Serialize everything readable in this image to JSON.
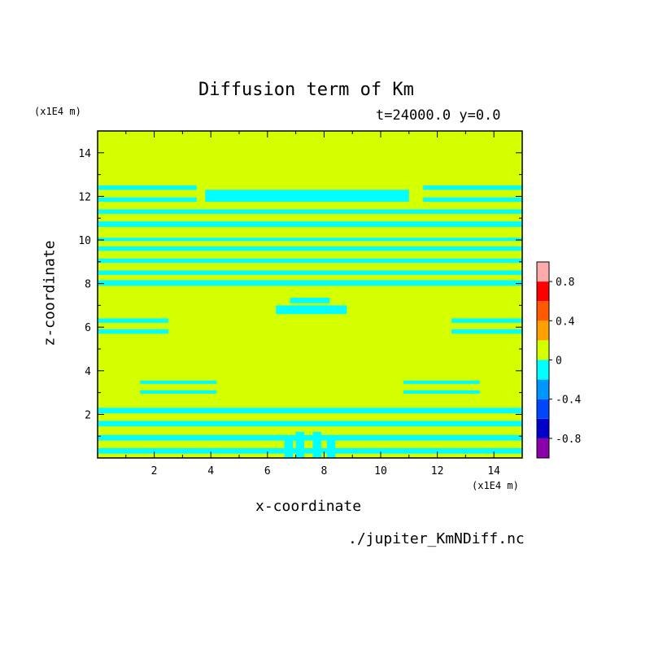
{
  "chart_data": {
    "type": "heatmap",
    "title": "Diffusion term of Km",
    "subtitle": "t=24000.0 y=0.0",
    "xlabel": "x-coordinate",
    "ylabel": "z-coordinate",
    "x_unit": "(x1E4 m)",
    "y_unit": "(x1E4 m)",
    "source_file": "./jupiter_KmNDiff.nc",
    "xlim": [
      0,
      15
    ],
    "ylim": [
      0,
      15
    ],
    "x_ticks": [
      "2",
      "4",
      "6",
      "8",
      "10",
      "12",
      "14"
    ],
    "y_ticks": [
      "2",
      "4",
      "6",
      "8",
      "10",
      "12",
      "14"
    ],
    "colorbar": {
      "levels": [
        -1.0,
        -0.8,
        -0.6,
        -0.4,
        -0.2,
        0,
        0.2,
        0.4,
        0.6,
        0.8,
        1.0
      ],
      "colors": [
        "#8b00a8",
        "#0000c8",
        "#0046ff",
        "#0096ff",
        "#00ffff",
        "#d4ff00",
        "#ffa000",
        "#ff5a00",
        "#ff0000",
        "#ffaaaa"
      ],
      "tick_labels": [
        "-0.8",
        "-0.4",
        "0",
        "0.4",
        "0.8"
      ],
      "tick_values": [
        -0.8,
        -0.4,
        0,
        0.4,
        0.8
      ]
    },
    "field": {
      "background_value": 0.1,
      "background_color": "#d4ff00",
      "negative_color": "#00ffff",
      "negative_bands": [
        {
          "x": [
            0,
            15
          ],
          "z": [
            0.2,
            0.45
          ]
        },
        {
          "x": [
            0,
            15
          ],
          "z": [
            0.8,
            1.05
          ]
        },
        {
          "x": [
            0,
            15
          ],
          "z": [
            1.45,
            1.7
          ]
        },
        {
          "x": [
            0,
            15
          ],
          "z": [
            2.05,
            2.3
          ]
        },
        {
          "x": [
            1.5,
            4.2
          ],
          "z": [
            3.4,
            3.55
          ]
        },
        {
          "x": [
            1.5,
            4.2
          ],
          "z": [
            2.95,
            3.1
          ]
        },
        {
          "x": [
            10.8,
            13.5
          ],
          "z": [
            3.4,
            3.55
          ]
        },
        {
          "x": [
            10.8,
            13.5
          ],
          "z": [
            2.95,
            3.1
          ]
        },
        {
          "x": [
            0,
            2.5
          ],
          "z": [
            6.2,
            6.4
          ]
        },
        {
          "x": [
            0,
            2.5
          ],
          "z": [
            5.7,
            5.9
          ]
        },
        {
          "x": [
            12.5,
            15
          ],
          "z": [
            6.2,
            6.4
          ]
        },
        {
          "x": [
            12.5,
            15
          ],
          "z": [
            5.7,
            5.9
          ]
        },
        {
          "x": [
            6.3,
            8.8
          ],
          "z": [
            6.6,
            7.0
          ]
        },
        {
          "x": [
            6.8,
            8.2
          ],
          "z": [
            7.1,
            7.35
          ]
        },
        {
          "x": [
            0,
            15
          ],
          "z": [
            7.9,
            8.15
          ]
        },
        {
          "x": [
            0,
            15
          ],
          "z": [
            8.4,
            8.6
          ]
        },
        {
          "x": [
            0,
            15
          ],
          "z": [
            8.95,
            9.15
          ]
        },
        {
          "x": [
            0,
            15
          ],
          "z": [
            9.5,
            9.7
          ]
        },
        {
          "x": [
            0,
            15
          ],
          "z": [
            9.95,
            10.1
          ]
        },
        {
          "x": [
            0,
            15
          ],
          "z": [
            10.6,
            10.85
          ]
        },
        {
          "x": [
            0,
            15
          ],
          "z": [
            11.2,
            11.4
          ]
        },
        {
          "x": [
            0,
            3.5
          ],
          "z": [
            11.75,
            11.95
          ]
        },
        {
          "x": [
            0,
            3.5
          ],
          "z": [
            12.3,
            12.5
          ]
        },
        {
          "x": [
            3.8,
            11.0
          ],
          "z": [
            11.75,
            12.3
          ]
        },
        {
          "x": [
            11.5,
            15
          ],
          "z": [
            11.75,
            11.95
          ]
        },
        {
          "x": [
            11.5,
            15
          ],
          "z": [
            12.3,
            12.5
          ]
        },
        {
          "x": [
            6.6,
            6.9
          ],
          "z": [
            0,
            1.0
          ]
        },
        {
          "x": [
            7.0,
            7.3
          ],
          "z": [
            0,
            1.2
          ]
        },
        {
          "x": [
            7.6,
            7.9
          ],
          "z": [
            0,
            1.2
          ]
        },
        {
          "x": [
            8.1,
            8.4
          ],
          "z": [
            0,
            1.0
          ]
        }
      ]
    }
  }
}
